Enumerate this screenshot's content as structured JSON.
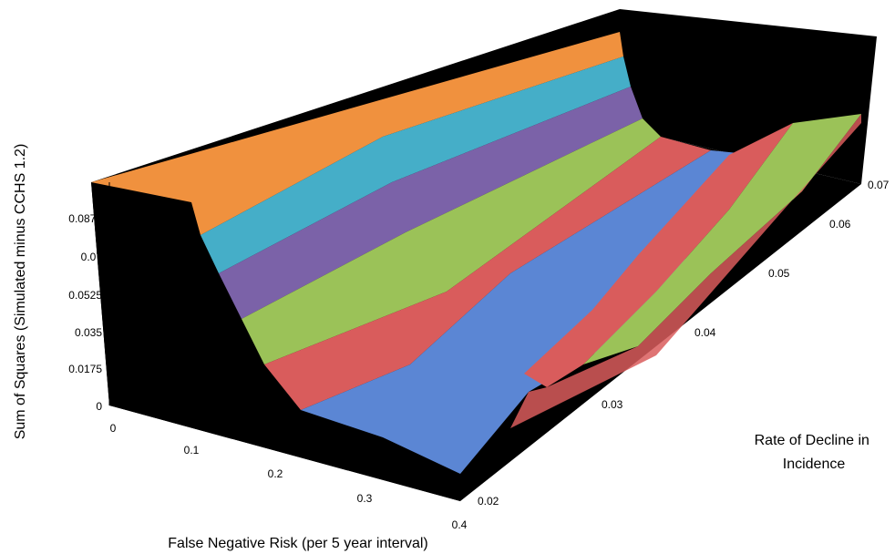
{
  "chart_data": {
    "type": "surface",
    "title": "",
    "zlabel": "Sum of Squares (Simulated minus CCHS 1.2)",
    "xlabel": "False Negative Risk (per 5 year interval)",
    "ylabel": "Rate of Decline in Incidence",
    "x_ticks": [
      "0",
      "0.1",
      "0.2",
      "0.3",
      "0.4"
    ],
    "y_ticks": [
      "0.02",
      "0.03",
      "0.04",
      "0.05",
      "0.06",
      "0.07"
    ],
    "z_ticks": [
      "0",
      "0.0175",
      "0.035",
      "0.0525",
      "0.07",
      "0.0875"
    ],
    "xlim": [
      0,
      0.4
    ],
    "ylim": [
      0.02,
      0.07
    ],
    "zlim": [
      0,
      0.0875
    ],
    "band_colors": [
      "#5b86d4",
      "#d95c5c",
      "#9bc258",
      "#7b62a8",
      "#45aec8",
      "#f0913e"
    ],
    "background": "#000000"
  }
}
